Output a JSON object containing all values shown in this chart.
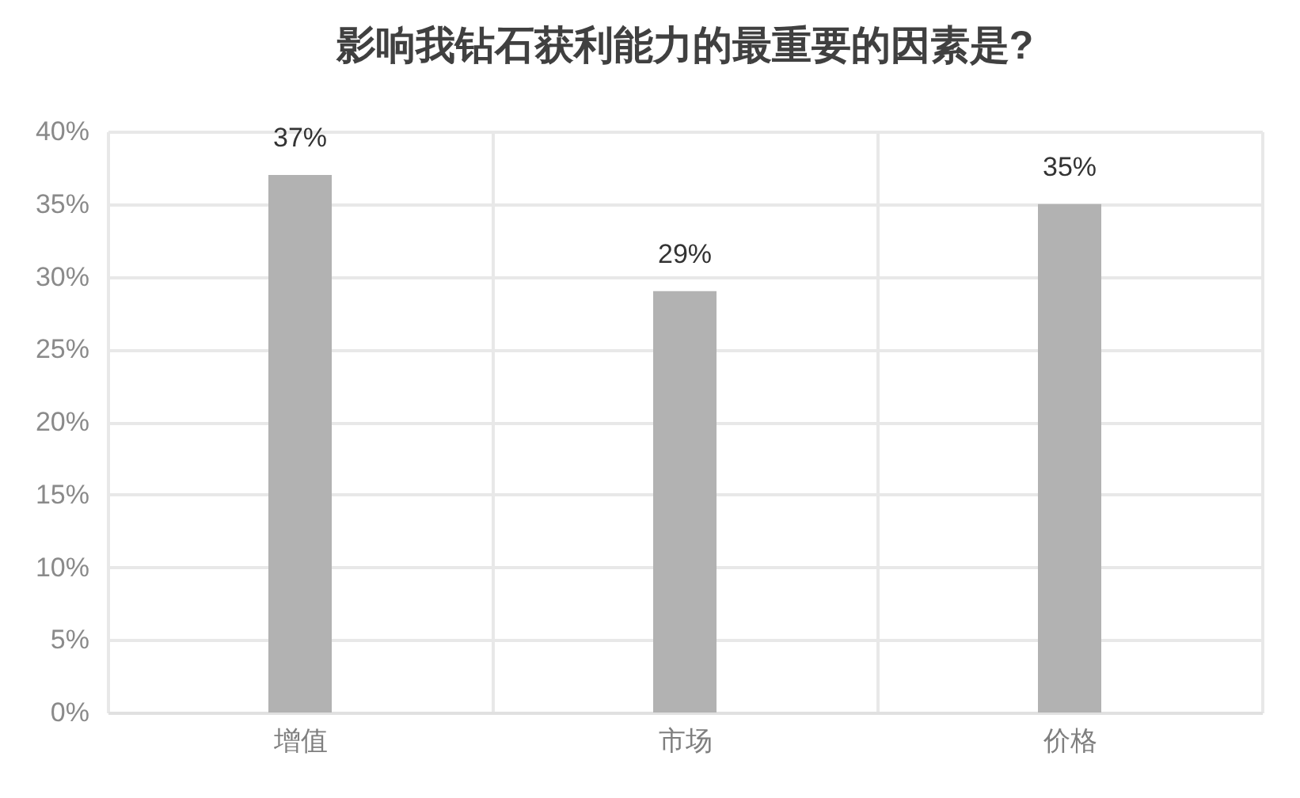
{
  "chart_data": {
    "type": "bar",
    "title": "影响我钻石获利能力的最重要的因素是?",
    "categories": [
      "增值",
      "市场",
      "价格"
    ],
    "values": [
      37,
      29,
      35
    ],
    "color": "#b2b2b2",
    "value_labels": [
      "37%",
      "29%",
      "35%"
    ],
    "ylim": [
      0,
      40
    ],
    "yticks": [
      {
        "value": 0,
        "label": "0%"
      },
      {
        "value": 5,
        "label": "5%"
      },
      {
        "value": 10,
        "label": "10%"
      },
      {
        "value": 15,
        "label": "15%"
      },
      {
        "value": 20,
        "label": "20%"
      },
      {
        "value": 25,
        "label": "25%"
      },
      {
        "value": 30,
        "label": "30%"
      },
      {
        "value": 35,
        "label": "35%"
      },
      {
        "value": 40,
        "label": "40%"
      }
    ],
    "grid": true
  }
}
